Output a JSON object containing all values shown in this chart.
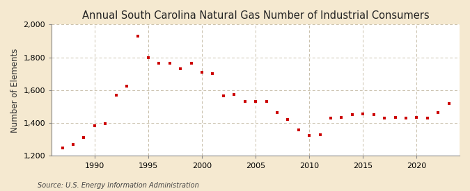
{
  "title": "Annual South Carolina Natural Gas Number of Industrial Consumers",
  "ylabel": "Number of Elements",
  "source": "Source: U.S. Energy Information Administration",
  "background_color": "#f5e9d0",
  "plot_background_color": "#ffffff",
  "marker_color": "#cc0000",
  "grid_color": "#c8bfaa",
  "years": [
    1987,
    1988,
    1989,
    1990,
    1991,
    1992,
    1993,
    1994,
    1995,
    1996,
    1997,
    1998,
    1999,
    2000,
    2001,
    2002,
    2003,
    2004,
    2005,
    2006,
    2007,
    2008,
    2009,
    2010,
    2011,
    2012,
    2013,
    2014,
    2015,
    2016,
    2017,
    2018,
    2019,
    2020,
    2021,
    2022,
    2023
  ],
  "values": [
    1248,
    1268,
    1310,
    1385,
    1395,
    1570,
    1625,
    1930,
    1800,
    1765,
    1765,
    1730,
    1765,
    1710,
    1700,
    1565,
    1575,
    1530,
    1530,
    1530,
    1465,
    1420,
    1360,
    1325,
    1330,
    1430,
    1435,
    1450,
    1455,
    1450,
    1430,
    1435,
    1430,
    1435,
    1430,
    1465,
    1520
  ],
  "ylim": [
    1200,
    2000
  ],
  "yticks": [
    1200,
    1400,
    1600,
    1800,
    2000
  ],
  "xticks": [
    1990,
    1995,
    2000,
    2005,
    2010,
    2015,
    2020
  ],
  "xlim": [
    1986,
    2024
  ],
  "title_fontsize": 10.5,
  "label_fontsize": 8.5,
  "tick_fontsize": 8,
  "source_fontsize": 7
}
